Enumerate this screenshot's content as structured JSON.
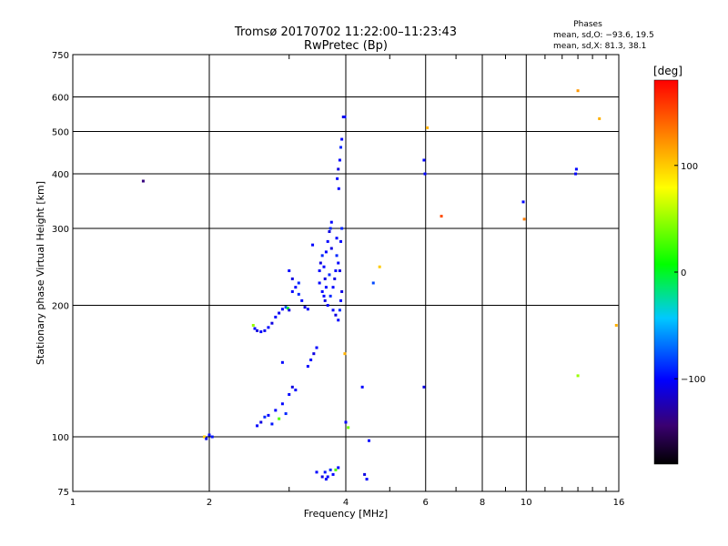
{
  "chart_data": {
    "type": "scatter",
    "title": "Tromsø 20170702 11:22:00–11:23:43",
    "subtitle": "RwPretec (Bp)",
    "xlabel": "Frequency [MHz]",
    "ylabel": "Stationary phase Virtual Height [km]",
    "xscale": "log",
    "yscale": "log",
    "xlim": [
      1,
      16
    ],
    "ylim": [
      75,
      750
    ],
    "xticks": [
      1,
      2,
      4,
      6,
      8,
      10,
      16
    ],
    "xtick_labels": [
      "1",
      "2",
      "4",
      "6",
      "8",
      "10",
      "16"
    ],
    "yticks": [
      75,
      100,
      200,
      300,
      400,
      500,
      600,
      750
    ],
    "ytick_labels": [
      "75",
      "100",
      "200",
      "300",
      "400",
      "500",
      "600",
      "750"
    ],
    "grid": true,
    "phase_stats": {
      "heading": "Phases",
      "line_o": "mean, sd,O: −93.6, 19.5",
      "line_x": "mean, sd,X: 81.3, 38.1"
    },
    "colorbar": {
      "label": "[deg]",
      "range": [
        -180,
        180
      ],
      "ticks": [
        100,
        0,
        -100
      ],
      "tick_labels": [
        "100",
        "0",
        "−100"
      ]
    },
    "points": [
      [
        1.43,
        385,
        -140
      ],
      [
        1.95,
        100,
        100
      ],
      [
        1.97,
        99,
        -100
      ],
      [
        2.0,
        101,
        -100
      ],
      [
        2.03,
        100,
        -95
      ],
      [
        2.5,
        180,
        50
      ],
      [
        2.52,
        177,
        -100
      ],
      [
        2.55,
        175,
        -110
      ],
      [
        2.6,
        174,
        -100
      ],
      [
        2.65,
        175,
        -105
      ],
      [
        2.7,
        178,
        -100
      ],
      [
        2.75,
        182,
        -110
      ],
      [
        2.8,
        188,
        -100
      ],
      [
        2.85,
        192,
        -105
      ],
      [
        2.9,
        196,
        -100
      ],
      [
        2.95,
        198,
        -80
      ],
      [
        2.98,
        197,
        0
      ],
      [
        3.0,
        195,
        -110
      ],
      [
        2.55,
        106,
        -100
      ],
      [
        2.6,
        108,
        -110
      ],
      [
        2.65,
        111,
        -90
      ],
      [
        2.7,
        112,
        -100
      ],
      [
        2.75,
        107,
        -95
      ],
      [
        2.8,
        115,
        -100
      ],
      [
        2.85,
        110,
        30
      ],
      [
        2.9,
        119,
        -100
      ],
      [
        2.95,
        113,
        -90
      ],
      [
        3.0,
        125,
        -100
      ],
      [
        3.05,
        130,
        -110
      ],
      [
        3.1,
        128,
        -100
      ],
      [
        2.9,
        148,
        -100
      ],
      [
        3.0,
        240,
        -100
      ],
      [
        3.05,
        230,
        -110
      ],
      [
        3.1,
        220,
        -100
      ],
      [
        3.15,
        212,
        -90
      ],
      [
        3.2,
        205,
        -100
      ],
      [
        3.25,
        198,
        -110
      ],
      [
        3.3,
        196,
        -100
      ],
      [
        3.05,
        215,
        -100
      ],
      [
        3.15,
        225,
        -90
      ],
      [
        3.35,
        150,
        -100
      ],
      [
        3.4,
        155,
        -110
      ],
      [
        3.45,
        160,
        -100
      ],
      [
        3.3,
        145,
        -100
      ],
      [
        3.38,
        275,
        -100
      ],
      [
        3.5,
        240,
        -100
      ],
      [
        3.52,
        250,
        -110
      ],
      [
        3.55,
        260,
        -90
      ],
      [
        3.58,
        245,
        -100
      ],
      [
        3.6,
        230,
        -110
      ],
      [
        3.62,
        220,
        -100
      ],
      [
        3.65,
        280,
        -100
      ],
      [
        3.68,
        295,
        -110
      ],
      [
        3.7,
        300,
        -90
      ],
      [
        3.72,
        310,
        -100
      ],
      [
        3.55,
        215,
        -100
      ],
      [
        3.6,
        205,
        -110
      ],
      [
        3.65,
        200,
        -100
      ],
      [
        3.7,
        210,
        -90
      ],
      [
        3.75,
        220,
        -100
      ],
      [
        3.78,
        230,
        -110
      ],
      [
        3.8,
        240,
        -100
      ],
      [
        3.82,
        260,
        -90
      ],
      [
        3.85,
        250,
        -100
      ],
      [
        3.88,
        240,
        -110
      ],
      [
        3.75,
        195,
        -100
      ],
      [
        3.8,
        190,
        -110
      ],
      [
        3.85,
        185,
        -100
      ],
      [
        3.88,
        195,
        -90
      ],
      [
        3.9,
        205,
        -100
      ],
      [
        3.92,
        215,
        -110
      ],
      [
        3.9,
        280,
        -100
      ],
      [
        3.92,
        300,
        -90
      ],
      [
        3.5,
        225,
        -100
      ],
      [
        3.62,
        265,
        -100
      ],
      [
        3.72,
        270,
        -110
      ],
      [
        3.82,
        285,
        -100
      ],
      [
        3.68,
        235,
        -90
      ],
      [
        3.58,
        210,
        -100
      ],
      [
        3.83,
        390,
        -100
      ],
      [
        3.85,
        410,
        -110
      ],
      [
        3.88,
        430,
        -100
      ],
      [
        3.9,
        460,
        -90
      ],
      [
        3.92,
        480,
        -100
      ],
      [
        3.86,
        370,
        -100
      ],
      [
        3.95,
        540,
        -110
      ],
      [
        3.98,
        540,
        -100
      ],
      [
        3.45,
        83,
        -100
      ],
      [
        3.55,
        81,
        -110
      ],
      [
        3.6,
        83,
        -95
      ],
      [
        3.65,
        81,
        -100
      ],
      [
        3.7,
        84,
        -90
      ],
      [
        3.75,
        82,
        -100
      ],
      [
        3.8,
        84,
        30
      ],
      [
        3.85,
        85,
        -100
      ],
      [
        3.62,
        80,
        -100
      ],
      [
        3.98,
        155,
        110
      ],
      [
        4.0,
        108,
        -100
      ],
      [
        4.05,
        105,
        40
      ],
      [
        4.35,
        130,
        -100
      ],
      [
        4.4,
        82,
        -110
      ],
      [
        4.45,
        80,
        -100
      ],
      [
        4.5,
        98,
        -100
      ],
      [
        4.6,
        225,
        -80
      ],
      [
        4.75,
        245,
        100
      ],
      [
        5.95,
        130,
        -110
      ],
      [
        5.95,
        430,
        -100
      ],
      [
        5.98,
        400,
        -100
      ],
      [
        6.05,
        510,
        110
      ],
      [
        6.5,
        320,
        150
      ],
      [
        9.85,
        345,
        -100
      ],
      [
        9.9,
        315,
        130
      ],
      [
        12.85,
        400,
        -100
      ],
      [
        12.9,
        410,
        -100
      ],
      [
        13.0,
        620,
        120
      ],
      [
        13.0,
        138,
        50
      ],
      [
        14.5,
        535,
        110
      ],
      [
        15.8,
        180,
        110
      ]
    ]
  }
}
